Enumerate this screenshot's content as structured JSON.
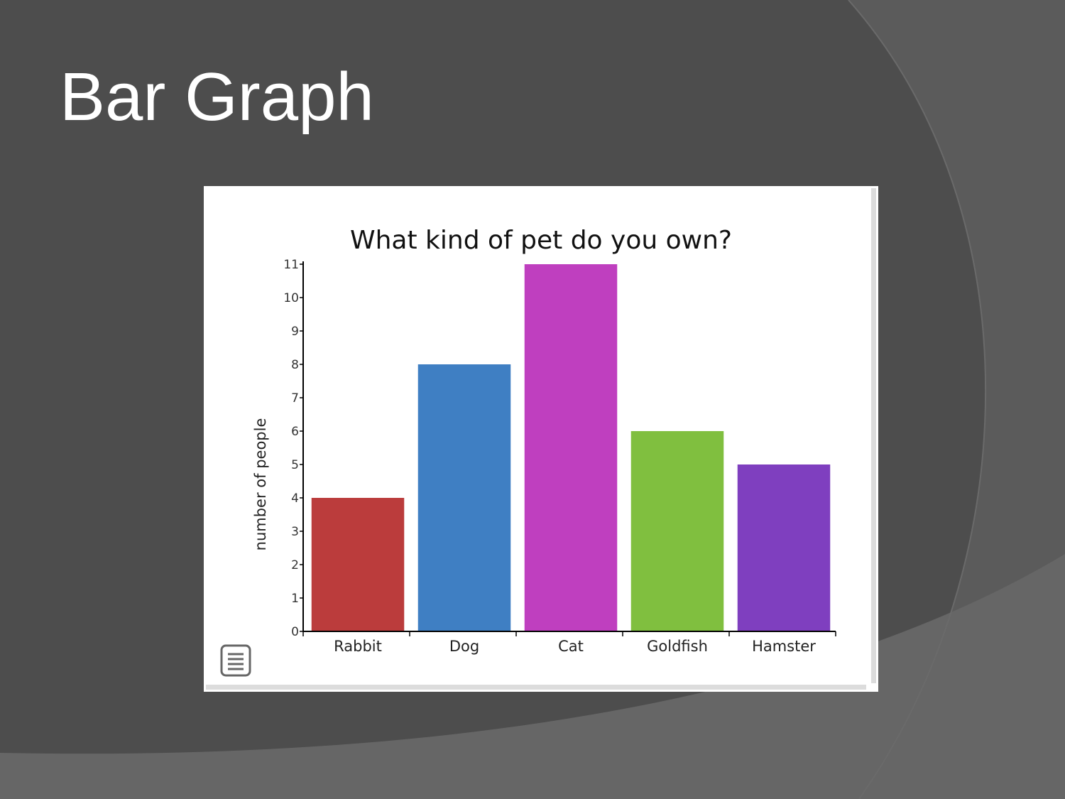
{
  "slide": {
    "title": "Bar Graph"
  },
  "colors": {
    "background": "#4d4d4d",
    "arc_light": "#5a5a5a",
    "arc_lighter": "#666666"
  },
  "chart_data": {
    "type": "bar",
    "title": "What kind of pet do you own?",
    "xlabel": "",
    "ylabel": "number of people",
    "categories": [
      "Rabbit",
      "Dog",
      "Cat",
      "Goldfish",
      "Hamster"
    ],
    "values": [
      4,
      8,
      11,
      6,
      5
    ],
    "colors": [
      "#bb3c3c",
      "#3f7fc3",
      "#bf3fbf",
      "#80bf3f",
      "#7f3fbf"
    ],
    "ylim": [
      0,
      11
    ],
    "yticks": [
      0,
      1,
      2,
      3,
      4,
      5,
      6,
      7,
      8,
      9,
      10,
      11
    ],
    "grid": false,
    "legend": "none"
  },
  "icons": {
    "menu": "menu-icon"
  }
}
